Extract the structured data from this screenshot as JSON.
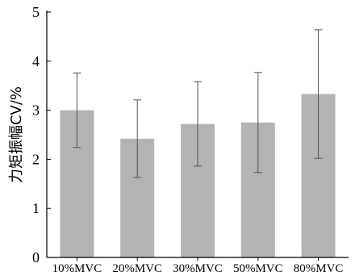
{
  "chart_data": {
    "type": "bar",
    "categories": [
      "10%MVC",
      "20%MVC",
      "30%MVC",
      "50%MVC",
      "80%MVC"
    ],
    "values": [
      3.0,
      2.42,
      2.72,
      2.75,
      3.33
    ],
    "errors": [
      0.76,
      0.79,
      0.86,
      1.02,
      1.31
    ],
    "title": "",
    "xlabel": "",
    "ylabel": "力矩振幅CV/%",
    "ylim": [
      0,
      5
    ],
    "yticks": [
      0,
      1,
      2,
      3,
      4,
      5
    ],
    "grid": false,
    "bar_color": "#b3b3b3",
    "errorbar_color": "#555555"
  }
}
